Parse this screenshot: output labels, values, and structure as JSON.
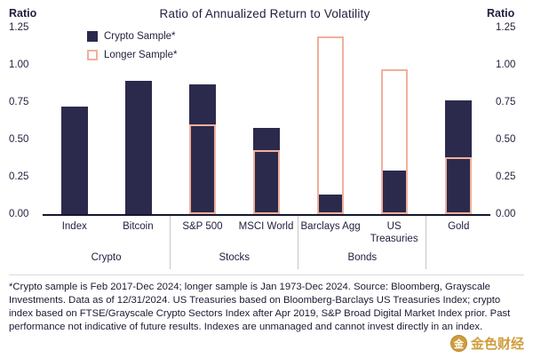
{
  "title": "Ratio of Annualized Return to Volatility",
  "axis": {
    "left_label": "Ratio",
    "right_label": "Ratio"
  },
  "legend": {
    "items": [
      {
        "label": "Crypto Sample*",
        "style": "solid"
      },
      {
        "label": "Longer Sample*",
        "style": "outline"
      }
    ]
  },
  "colors": {
    "navy": "#2b2a4c",
    "pink": "#f0b09c",
    "gold": "#cf9d3b"
  },
  "chart_data": {
    "type": "bar",
    "title": "Ratio of Annualized Return to Volatility",
    "xlabel": "",
    "ylabel": "Ratio",
    "ylim": [
      0,
      1.25
    ],
    "grid": false,
    "legend_position": "top-left-inside",
    "yticks": [
      {
        "v": 0.0,
        "label": "0.00"
      },
      {
        "v": 0.25,
        "label": "0.25"
      },
      {
        "v": 0.5,
        "label": "0.50"
      },
      {
        "v": 0.75,
        "label": "0.75"
      },
      {
        "v": 1.0,
        "label": "1.00"
      },
      {
        "v": 1.25,
        "label": "1.25"
      }
    ],
    "categories": [
      "Index",
      "Bitcoin",
      "S&P 500",
      "MSCI World",
      "Barclays Agg",
      "US Treasuries",
      "Gold"
    ],
    "groups": [
      {
        "name": "Crypto",
        "items": [
          "Index",
          "Bitcoin"
        ]
      },
      {
        "name": "Stocks",
        "items": [
          "S&P 500",
          "MSCI World"
        ]
      },
      {
        "name": "Bonds",
        "items": [
          "Barclays Agg",
          "US Treasuries"
        ]
      },
      {
        "name": "",
        "items": [
          "Gold"
        ]
      }
    ],
    "series": [
      {
        "name": "Crypto Sample*",
        "style": "solid",
        "values": [
          0.72,
          0.89,
          0.87,
          0.58,
          0.13,
          0.29,
          0.76
        ]
      },
      {
        "name": "Longer Sample*",
        "style": "outline",
        "values": [
          null,
          null,
          0.6,
          0.43,
          1.19,
          0.97,
          0.38
        ]
      }
    ]
  },
  "footnote": "*Crypto sample is Feb 2017-Dec 2024; longer sample is Jan 1973-Dec 2024. Source: Bloomberg, Grayscale Investments. Data as of 12/31/2024. US Treasuries based on Bloomberg-Barclays US Treasuries Index; crypto index based on FTSE/Grayscale Crypto Sectors Index after Apr 2019, S&P Broad Digital Market Index prior. Past performance not indicative of future results. Indexes are unmanaged and cannot invest directly in an index.",
  "watermark": {
    "text": "金色财经",
    "logo_char": "金"
  }
}
